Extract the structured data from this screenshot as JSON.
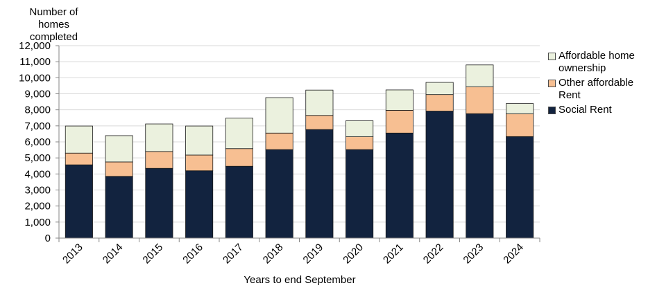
{
  "chart_data": {
    "type": "bar",
    "stacked": true,
    "ylabel": "Number of homes completed",
    "xlabel": "Years to end September",
    "ylim": [
      0,
      12000
    ],
    "yticks": [
      "0",
      "1,000",
      "2,000",
      "3,000",
      "4,000",
      "5,000",
      "6,000",
      "7,000",
      "8,000",
      "9,000",
      "10,000",
      "11,000",
      "12,000"
    ],
    "categories": [
      "2013",
      "2014",
      "2015",
      "2016",
      "2017",
      "2018",
      "2019",
      "2020",
      "2021",
      "2022",
      "2023",
      "2024"
    ],
    "grid": true,
    "legend_position": "right",
    "series": [
      {
        "name": "Social Rent",
        "color": "#12233f",
        "values": [
          4570,
          3850,
          4350,
          4200,
          4480,
          5520,
          6770,
          5520,
          6550,
          7920,
          7760,
          6330
        ]
      },
      {
        "name": "Other affordable Rent",
        "color": "#f7bf92",
        "values": [
          730,
          900,
          1050,
          980,
          1100,
          1030,
          880,
          800,
          1420,
          1030,
          1670,
          1420
        ]
      },
      {
        "name": "Affordable home ownership",
        "color": "#ebf1de",
        "values": [
          1690,
          1640,
          1720,
          1810,
          1900,
          2210,
          1580,
          1000,
          1270,
          760,
          1370,
          640
        ]
      }
    ]
  }
}
